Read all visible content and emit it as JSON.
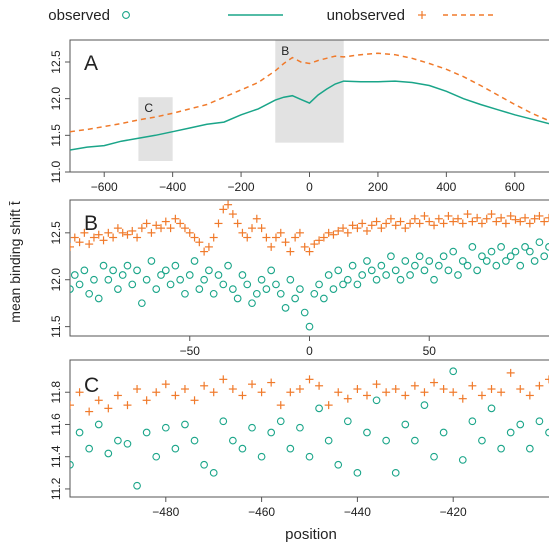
{
  "colors": {
    "observed": "#1aa589",
    "unobserved": "#f07a2b",
    "box": "#e2e2e2",
    "axis": "#555555"
  },
  "legend": {
    "observed": "observed",
    "unobserved": "unobserved"
  },
  "y_axis_label": "mean binding shift t̄",
  "x_axis_label": "position",
  "chart_data": [
    {
      "type": "line",
      "panel_label": "A",
      "xlim": [
        -700,
        700
      ],
      "ylim": [
        11.0,
        12.8
      ],
      "xticks": [
        -600,
        -400,
        -200,
        0,
        200,
        400,
        600
      ],
      "yticks": [
        11.0,
        11.5,
        12.0,
        12.5
      ],
      "highlight_boxes": [
        {
          "label": "C",
          "x": [
            -500,
            -400
          ],
          "y": [
            11.15,
            12.02
          ]
        },
        {
          "label": "B",
          "x": [
            -100,
            100
          ],
          "y": [
            11.4,
            12.8
          ]
        }
      ],
      "series": [
        {
          "key": "observed",
          "style": "solid",
          "x": [
            -700,
            -650,
            -600,
            -550,
            -500,
            -450,
            -400,
            -350,
            -300,
            -250,
            -200,
            -150,
            -100,
            -75,
            -50,
            -25,
            0,
            25,
            50,
            75,
            100,
            150,
            200,
            250,
            300,
            350,
            400,
            450,
            500,
            550,
            600,
            650,
            700
          ],
          "y": [
            11.3,
            11.34,
            11.36,
            11.42,
            11.46,
            11.5,
            11.55,
            11.6,
            11.65,
            11.68,
            11.78,
            11.86,
            11.98,
            12.02,
            12.04,
            11.99,
            11.94,
            12.05,
            12.13,
            12.2,
            12.24,
            12.23,
            12.23,
            12.24,
            12.22,
            12.18,
            12.1,
            12.0,
            11.92,
            11.85,
            11.78,
            11.72,
            11.66
          ]
        },
        {
          "key": "unobserved",
          "style": "dashed",
          "x": [
            -700,
            -650,
            -600,
            -550,
            -500,
            -450,
            -400,
            -350,
            -300,
            -250,
            -200,
            -150,
            -100,
            -75,
            -50,
            -25,
            0,
            25,
            50,
            75,
            100,
            150,
            200,
            250,
            300,
            350,
            400,
            450,
            500,
            550,
            600,
            650,
            700
          ],
          "y": [
            11.55,
            11.58,
            11.62,
            11.66,
            11.71,
            11.75,
            11.8,
            11.86,
            11.92,
            12.02,
            12.12,
            12.22,
            12.38,
            12.48,
            12.56,
            12.5,
            12.48,
            12.52,
            12.55,
            12.58,
            12.57,
            12.6,
            12.62,
            12.6,
            12.55,
            12.48,
            12.4,
            12.3,
            12.18,
            12.05,
            11.92,
            11.8,
            11.7
          ]
        }
      ]
    },
    {
      "type": "scatter",
      "panel_label": "B",
      "xlim": [
        -100,
        100
      ],
      "ylim": [
        11.4,
        12.85
      ],
      "xticks": [
        -50,
        0,
        50
      ],
      "yticks": [
        11.5,
        12.0,
        12.5
      ],
      "series": [
        {
          "key": "observed",
          "marker": "circle",
          "x": [
            -100,
            -98,
            -96,
            -94,
            -92,
            -90,
            -88,
            -86,
            -84,
            -82,
            -80,
            -78,
            -76,
            -74,
            -72,
            -70,
            -68,
            -66,
            -64,
            -62,
            -60,
            -58,
            -56,
            -54,
            -52,
            -50,
            -48,
            -46,
            -44,
            -42,
            -40,
            -38,
            -36,
            -34,
            -32,
            -30,
            -28,
            -26,
            -24,
            -22,
            -20,
            -18,
            -16,
            -14,
            -12,
            -10,
            -8,
            -6,
            -4,
            -2,
            0,
            2,
            4,
            6,
            8,
            10,
            12,
            14,
            16,
            18,
            20,
            22,
            24,
            26,
            28,
            30,
            32,
            34,
            36,
            38,
            40,
            42,
            44,
            46,
            48,
            50,
            52,
            54,
            56,
            58,
            60,
            62,
            64,
            66,
            68,
            70,
            72,
            74,
            76,
            78,
            80,
            82,
            84,
            86,
            88,
            90,
            92,
            94,
            96,
            98,
            100
          ],
          "y": [
            11.9,
            12.05,
            11.95,
            12.1,
            11.85,
            12.0,
            11.8,
            12.15,
            12.0,
            12.1,
            11.9,
            12.05,
            12.15,
            11.95,
            12.1,
            11.75,
            12.0,
            12.2,
            11.9,
            12.05,
            12.1,
            11.95,
            12.15,
            12.0,
            11.85,
            12.05,
            12.2,
            11.9,
            12.0,
            12.1,
            11.85,
            12.05,
            11.95,
            12.15,
            11.9,
            11.8,
            12.05,
            11.95,
            11.75,
            11.85,
            12.0,
            11.9,
            12.1,
            11.95,
            11.85,
            11.7,
            12.0,
            11.8,
            11.9,
            11.65,
            11.5,
            11.85,
            11.95,
            11.8,
            12.05,
            11.9,
            12.1,
            11.95,
            12.0,
            12.15,
            11.95,
            12.05,
            12.2,
            12.1,
            12.0,
            12.15,
            12.05,
            12.25,
            12.1,
            12.0,
            12.2,
            12.05,
            12.15,
            12.25,
            12.1,
            12.2,
            12.0,
            12.15,
            12.25,
            12.1,
            12.3,
            12.05,
            12.2,
            12.15,
            12.35,
            12.1,
            12.25,
            12.2,
            12.3,
            12.15,
            12.35,
            12.2,
            12.25,
            12.3,
            12.15,
            12.35,
            12.3,
            12.2,
            12.4,
            12.25,
            12.35
          ]
        },
        {
          "key": "unobserved",
          "marker": "plus",
          "x": [
            -100,
            -98,
            -96,
            -94,
            -92,
            -90,
            -88,
            -86,
            -84,
            -82,
            -80,
            -78,
            -76,
            -74,
            -72,
            -70,
            -68,
            -66,
            -64,
            -62,
            -60,
            -58,
            -56,
            -54,
            -52,
            -50,
            -48,
            -46,
            -44,
            -42,
            -40,
            -38,
            -36,
            -34,
            -32,
            -30,
            -28,
            -26,
            -24,
            -22,
            -20,
            -18,
            -16,
            -14,
            -12,
            -10,
            -8,
            -6,
            -4,
            -2,
            0,
            2,
            4,
            6,
            8,
            10,
            12,
            14,
            16,
            18,
            20,
            22,
            24,
            26,
            28,
            30,
            32,
            34,
            36,
            38,
            40,
            42,
            44,
            46,
            48,
            50,
            52,
            54,
            56,
            58,
            60,
            62,
            64,
            66,
            68,
            70,
            72,
            74,
            76,
            78,
            80,
            82,
            84,
            86,
            88,
            90,
            92,
            94,
            96,
            98,
            100
          ],
          "y": [
            12.35,
            12.45,
            12.4,
            12.5,
            12.38,
            12.45,
            12.48,
            12.42,
            12.5,
            12.45,
            12.55,
            12.5,
            12.48,
            12.52,
            12.45,
            12.55,
            12.6,
            12.5,
            12.58,
            12.55,
            12.62,
            12.55,
            12.65,
            12.6,
            12.55,
            12.5,
            12.45,
            12.4,
            12.3,
            12.35,
            12.45,
            12.6,
            12.75,
            12.8,
            12.7,
            12.6,
            12.5,
            12.45,
            12.55,
            12.65,
            12.55,
            12.45,
            12.35,
            12.45,
            12.5,
            12.4,
            12.3,
            12.45,
            12.5,
            12.35,
            12.3,
            12.38,
            12.42,
            12.45,
            12.5,
            12.48,
            12.52,
            12.55,
            12.5,
            12.58,
            12.55,
            12.6,
            12.52,
            12.58,
            12.62,
            12.55,
            12.6,
            12.65,
            12.58,
            12.62,
            12.55,
            12.6,
            12.65,
            12.6,
            12.68,
            12.62,
            12.58,
            12.65,
            12.6,
            12.68,
            12.62,
            12.65,
            12.6,
            12.7,
            12.62,
            12.66,
            12.6,
            12.65,
            12.7,
            12.62,
            12.66,
            12.6,
            12.68,
            12.64,
            12.62,
            12.66,
            12.6,
            12.65,
            12.68,
            12.62,
            12.66
          ]
        }
      ]
    },
    {
      "type": "scatter",
      "panel_label": "C",
      "xlim": [
        -500,
        -400
      ],
      "ylim": [
        11.15,
        12.0
      ],
      "xticks": [
        -480,
        -460,
        -440,
        -420
      ],
      "yticks": [
        11.2,
        11.4,
        11.6,
        11.8
      ],
      "series": [
        {
          "key": "observed",
          "marker": "circle",
          "x": [
            -500,
            -498,
            -496,
            -494,
            -492,
            -490,
            -488,
            -486,
            -484,
            -482,
            -480,
            -478,
            -476,
            -474,
            -472,
            -470,
            -468,
            -466,
            -464,
            -462,
            -460,
            -458,
            -456,
            -454,
            -452,
            -450,
            -448,
            -446,
            -444,
            -442,
            -440,
            -438,
            -436,
            -434,
            -432,
            -430,
            -428,
            -426,
            -424,
            -422,
            -420,
            -418,
            -416,
            -414,
            -412,
            -410,
            -408,
            -406,
            -404,
            -402,
            -400
          ],
          "y": [
            11.35,
            11.55,
            11.45,
            11.6,
            11.42,
            11.5,
            11.48,
            11.22,
            11.55,
            11.4,
            11.58,
            11.45,
            11.6,
            11.5,
            11.35,
            11.3,
            11.62,
            11.5,
            11.45,
            11.58,
            11.4,
            11.55,
            11.62,
            11.45,
            11.58,
            11.4,
            11.7,
            11.5,
            11.35,
            11.62,
            11.3,
            11.55,
            11.75,
            11.5,
            11.3,
            11.6,
            11.5,
            11.72,
            11.4,
            11.55,
            11.93,
            11.38,
            11.62,
            11.5,
            11.7,
            11.45,
            11.55,
            11.6,
            11.45,
            11.62,
            11.55
          ]
        },
        {
          "key": "unobserved",
          "marker": "plus",
          "x": [
            -500,
            -498,
            -496,
            -494,
            -492,
            -490,
            -488,
            -486,
            -484,
            -482,
            -480,
            -478,
            -476,
            -474,
            -472,
            -470,
            -468,
            -466,
            -464,
            -462,
            -460,
            -458,
            -456,
            -454,
            -452,
            -450,
            -448,
            -446,
            -444,
            -442,
            -440,
            -438,
            -436,
            -434,
            -432,
            -430,
            -428,
            -426,
            -424,
            -422,
            -420,
            -418,
            -416,
            -414,
            -412,
            -410,
            -408,
            -406,
            -404,
            -402,
            -400
          ],
          "y": [
            11.72,
            11.8,
            11.68,
            11.75,
            11.7,
            11.78,
            11.72,
            11.82,
            11.75,
            11.8,
            11.85,
            11.78,
            11.82,
            11.75,
            11.84,
            11.8,
            11.88,
            11.82,
            11.78,
            11.85,
            11.8,
            11.86,
            11.72,
            11.8,
            11.82,
            11.88,
            11.84,
            11.72,
            11.8,
            11.76,
            11.82,
            11.78,
            11.85,
            11.8,
            11.82,
            11.78,
            11.84,
            11.8,
            11.86,
            11.82,
            11.8,
            11.76,
            11.84,
            11.78,
            11.82,
            11.8,
            11.92,
            11.82,
            11.78,
            11.84,
            11.88
          ]
        }
      ]
    }
  ]
}
